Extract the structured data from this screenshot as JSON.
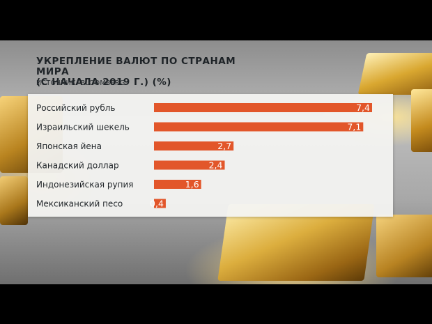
{
  "header": {
    "title_line1": "УКРЕПЛЕНИЕ ВАЛЮТ ПО СТРАНАМ МИРА",
    "title_line2": "(С НАЧАЛА 2019 Г.) (%)",
    "source": "ИСТОЧНИК: BLOOMBERG"
  },
  "colors": {
    "bar": "#e2562a",
    "label": "#1f2428",
    "value": "#ffffff"
  },
  "chart_data": {
    "type": "bar",
    "orientation": "horizontal",
    "title": "УКРЕПЛЕНИЕ ВАЛЮТ ПО СТРАНАМ МИРА (С НАЧАЛА 2019 Г.) (%)",
    "subtitle": "ИСТОЧНИК: BLOOMBERG",
    "categories": [
      "Российский рубль",
      "Израильский шекель",
      "Японская йена",
      "Канадский доллар",
      "Индонезийская рупия",
      "Мексиканский песо"
    ],
    "values": [
      7.4,
      7.1,
      2.7,
      2.4,
      1.6,
      0.4
    ],
    "value_labels": [
      "7,4",
      "7,1",
      "2,7",
      "2,4",
      "1,6",
      "0,4"
    ],
    "xlim": [
      0,
      7.4
    ],
    "grid": false,
    "legend": "none"
  }
}
